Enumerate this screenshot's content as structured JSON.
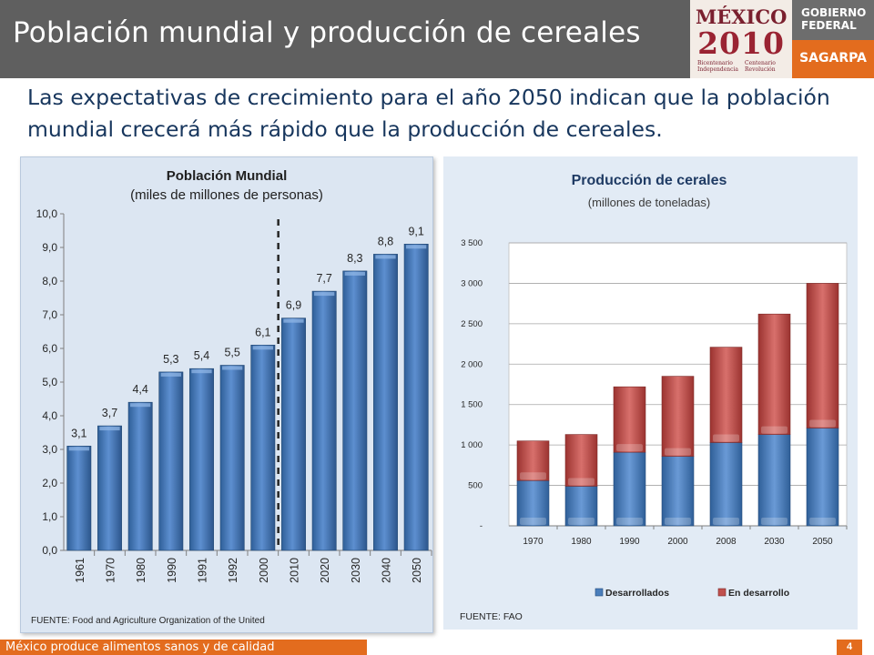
{
  "header": {
    "title": "Población mundial y producción de cereales"
  },
  "logos": {
    "mexico_word": "MÉXICO",
    "mexico_year": "2010",
    "mexico_sub_left": "Bicentenario Independencia",
    "mexico_sub_right": "Centenario Revolución",
    "gobierno": "GOBIERNO FEDERAL",
    "sagarpa": "SAGARPA"
  },
  "subtitle": "Las expectativas de crecimiento para el año 2050 indican que la población mundial crecerá más rápido que la producción de cereales.",
  "footer": {
    "text": "México produce alimentos sanos y de calidad",
    "page": "4"
  },
  "chart_data": [
    {
      "type": "bar",
      "title": "Población Mundial",
      "subtitle": "(miles de millones de personas)",
      "categories": [
        "1961",
        "1970",
        "1980",
        "1990",
        "1991",
        "1992",
        "2000",
        "2010",
        "2020",
        "2030",
        "2040",
        "2050"
      ],
      "values": [
        3.1,
        3.7,
        4.4,
        5.3,
        5.4,
        5.5,
        6.1,
        6.9,
        7.7,
        8.3,
        8.8,
        9.1
      ],
      "value_labels": [
        "3,1",
        "3,7",
        "4,4",
        "5,3",
        "5,4",
        "5,5",
        "6,1",
        "6,9",
        "7,7",
        "8,3",
        "8,8",
        "9,1"
      ],
      "yticks": [
        "0,0",
        "1,0",
        "2,0",
        "3,0",
        "4,0",
        "5,0",
        "6,0",
        "7,0",
        "8,0",
        "9,0",
        "10,0"
      ],
      "ylim": [
        0,
        10
      ],
      "grid": false,
      "projection_divider_after": "2000",
      "bar_color": "#4a7ebb",
      "source": "FUENTE: Food and Agriculture Organization of the United"
    },
    {
      "type": "bar",
      "stacked": true,
      "title": "Producción de cerales",
      "subtitle": "(millones de toneladas)",
      "categories": [
        "1970",
        "1980",
        "1990",
        "2000",
        "2008",
        "2030",
        "2050"
      ],
      "series": [
        {
          "name": "Desarrollados",
          "values": [
            560,
            490,
            910,
            860,
            1030,
            1130,
            1210
          ],
          "color": "#4a7ebb"
        },
        {
          "name": "En desarrollo",
          "values": [
            490,
            640,
            810,
            990,
            1180,
            1490,
            1790
          ],
          "color": "#c0504d"
        }
      ],
      "yticks": [
        "-",
        "500",
        "1 000",
        "1 500",
        "2 000",
        "2 500",
        "3 000",
        "3 500"
      ],
      "ylim": [
        0,
        3500
      ],
      "grid": true,
      "legend": "bottom",
      "source": "FUENTE: FAO"
    }
  ]
}
